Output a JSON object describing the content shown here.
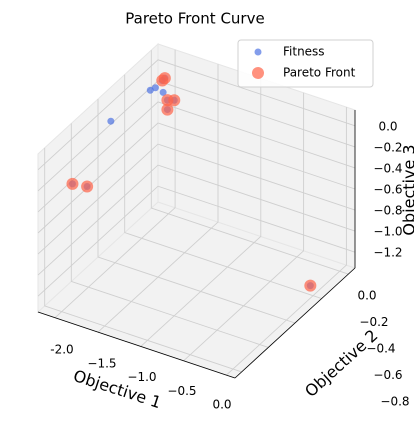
{
  "chart_data": {
    "type": "scatter3d",
    "title": "Pareto Front Curve",
    "x_label": "Objective 1",
    "y_label": "Objective 2",
    "z_label": "Objective 3",
    "xlim": [
      -2.2,
      0.1
    ],
    "ylim": [
      -0.85,
      0.05
    ],
    "zlim": [
      -1.35,
      0.15
    ],
    "xticks": [
      {
        "value": -2.0,
        "label": "-2.0"
      },
      {
        "value": -1.5,
        "label": "−1.5"
      },
      {
        "value": -1.0,
        "label": "−1.0"
      },
      {
        "value": -0.5,
        "label": "−0.5"
      },
      {
        "value": 0.0,
        "label": "0.0"
      }
    ],
    "yticks": [
      {
        "value": 0.0,
        "label": "0.0"
      },
      {
        "value": -0.2,
        "label": "−0.2"
      },
      {
        "value": -0.4,
        "label": "−0.4"
      },
      {
        "value": -0.6,
        "label": "−0.6"
      },
      {
        "value": -0.8,
        "label": "−0.8"
      }
    ],
    "zticks": [
      {
        "value": 0.0,
        "label": "0.0"
      },
      {
        "value": -0.2,
        "label": "−0.2"
      },
      {
        "value": -0.4,
        "label": "−0.4"
      },
      {
        "value": -0.6,
        "label": "−0.6"
      },
      {
        "value": -0.8,
        "label": "−0.8"
      },
      {
        "value": -1.0,
        "label": "−1.0"
      },
      {
        "value": -1.2,
        "label": "−1.2"
      }
    ],
    "grid": true,
    "legend": "upper right",
    "series": [
      {
        "name": "Fitness",
        "color": "#4169e1",
        "size": 3.5,
        "x": [
          -2.05,
          -2.08,
          -2.02,
          -2.0,
          -2.01,
          -1.98,
          -1.87,
          -1.95,
          -1.95,
          -2.0,
          -1.86,
          0.03
        ],
        "y": [
          -0.4,
          -0.085,
          -0.085,
          -0.04,
          -0.04,
          -0.04,
          -0.04,
          -0.04,
          -0.04,
          -0.72,
          -0.7,
          -0.24
        ],
        "z": [
          -0.02,
          -0.1,
          -0.06,
          -0.15,
          -0.04,
          -0.01,
          -0.19,
          -0.21,
          -0.3,
          -0.23,
          -0.24,
          -1.2
        ]
      },
      {
        "name": "Pareto Front",
        "color": "#ff6347",
        "size": 6,
        "x": [
          -2.01,
          -1.98,
          -1.87,
          -1.95,
          -1.95,
          -2.0,
          -1.86,
          0.03
        ],
        "y": [
          -0.04,
          -0.04,
          -0.04,
          -0.04,
          -0.04,
          -0.72,
          -0.7,
          -0.24
        ],
        "z": [
          -0.04,
          -0.01,
          -0.19,
          -0.21,
          -0.3,
          -0.23,
          -0.24,
          -1.2
        ]
      }
    ]
  }
}
